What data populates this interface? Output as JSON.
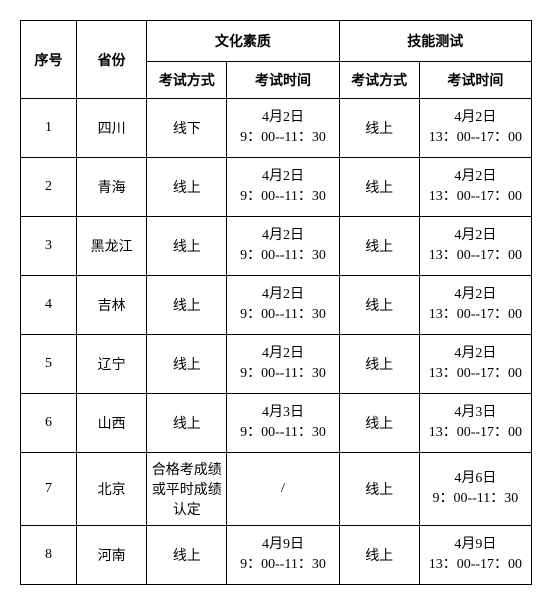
{
  "table": {
    "headers": {
      "seq": "序号",
      "province": "省份",
      "culture_group": "文化素质",
      "skill_group": "技能测试",
      "exam_mode": "考试方式",
      "exam_time": "考试时间"
    },
    "rows": [
      {
        "seq": "1",
        "province": "四川",
        "culture_mode": "线下",
        "culture_time_l1": "4月2日",
        "culture_time_l2": "9：00--11：30",
        "skill_mode": "线上",
        "skill_time_l1": "4月2日",
        "skill_time_l2": "13：00--17：00"
      },
      {
        "seq": "2",
        "province": "青海",
        "culture_mode": "线上",
        "culture_time_l1": "4月2日",
        "culture_time_l2": "9：00--11：30",
        "skill_mode": "线上",
        "skill_time_l1": "4月2日",
        "skill_time_l2": "13：00--17：00"
      },
      {
        "seq": "3",
        "province": "黑龙江",
        "culture_mode": "线上",
        "culture_time_l1": "4月2日",
        "culture_time_l2": "9：00--11：30",
        "skill_mode": "线上",
        "skill_time_l1": "4月2日",
        "skill_time_l2": "13：00--17：00"
      },
      {
        "seq": "4",
        "province": "吉林",
        "culture_mode": "线上",
        "culture_time_l1": "4月2日",
        "culture_time_l2": "9：00--11：30",
        "skill_mode": "线上",
        "skill_time_l1": "4月2日",
        "skill_time_l2": "13：00--17：00"
      },
      {
        "seq": "5",
        "province": "辽宁",
        "culture_mode": "线上",
        "culture_time_l1": "4月2日",
        "culture_time_l2": "9：00--11：30",
        "skill_mode": "线上",
        "skill_time_l1": "4月2日",
        "skill_time_l2": "13：00--17：00"
      },
      {
        "seq": "6",
        "province": "山西",
        "culture_mode": "线上",
        "culture_time_l1": "4月3日",
        "culture_time_l2": "9：00--11：30",
        "skill_mode": "线上",
        "skill_time_l1": "4月3日",
        "skill_time_l2": "13：00--17：00"
      },
      {
        "seq": "7",
        "province": "北京",
        "culture_mode": "合格考成绩或平时成绩认定",
        "culture_time_l1": "/",
        "culture_time_l2": "",
        "skill_mode": "线上",
        "skill_time_l1": "4月6日",
        "skill_time_l2": "9：00--11：30"
      },
      {
        "seq": "8",
        "province": "河南",
        "culture_mode": "线上",
        "culture_time_l1": "4月9日",
        "culture_time_l2": "9：00--11：30",
        "skill_mode": "线上",
        "skill_time_l1": "4月9日",
        "skill_time_l2": "13：00--17：00"
      }
    ]
  }
}
